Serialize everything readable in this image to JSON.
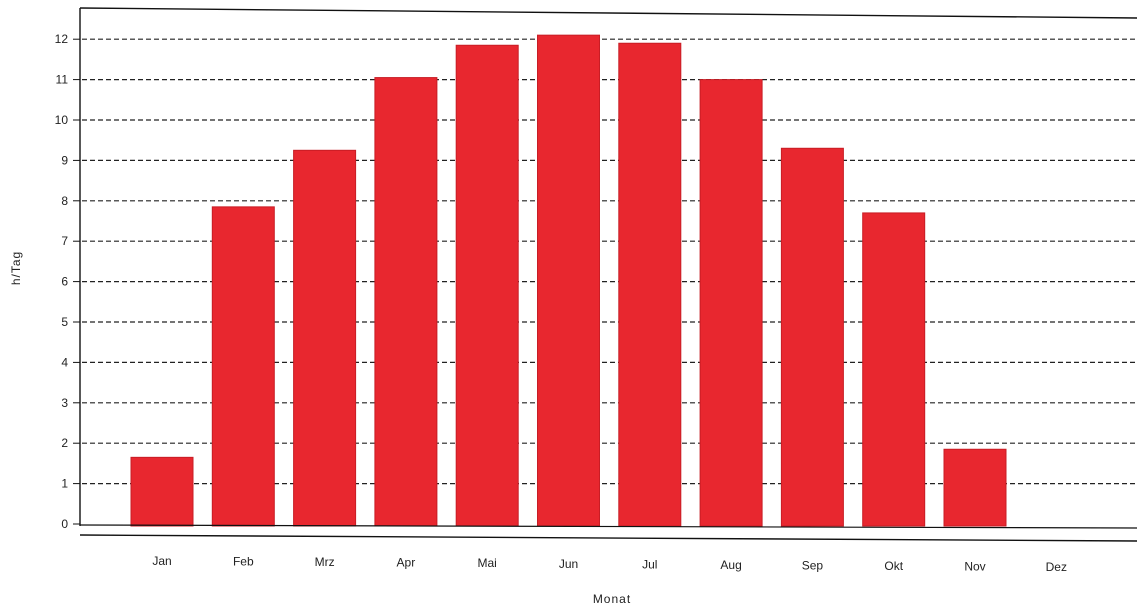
{
  "colors": {
    "bar": "#e8272f",
    "bar_edge": "#c81d25",
    "axis": "#111111",
    "grid": "#222222",
    "background": "#ffffff"
  },
  "chart_data": {
    "type": "bar",
    "title": "",
    "xlabel": "Monat",
    "ylabel": "h/Tag",
    "categories": [
      "Jan",
      "Feb",
      "Mrz",
      "Apr",
      "Mai",
      "Jun",
      "Jul",
      "Aug",
      "Sep",
      "Okt",
      "Nov",
      "Dez"
    ],
    "values": [
      1.65,
      7.85,
      9.25,
      11.05,
      11.85,
      12.1,
      11.9,
      11.0,
      9.3,
      7.7,
      1.85,
      0
    ],
    "ylim": [
      0,
      12.5
    ],
    "yticks": [
      0,
      1,
      2,
      3,
      4,
      5,
      6,
      7,
      8,
      9,
      10,
      11,
      12
    ],
    "grid": "horizontal, dashed",
    "legend": "none"
  }
}
